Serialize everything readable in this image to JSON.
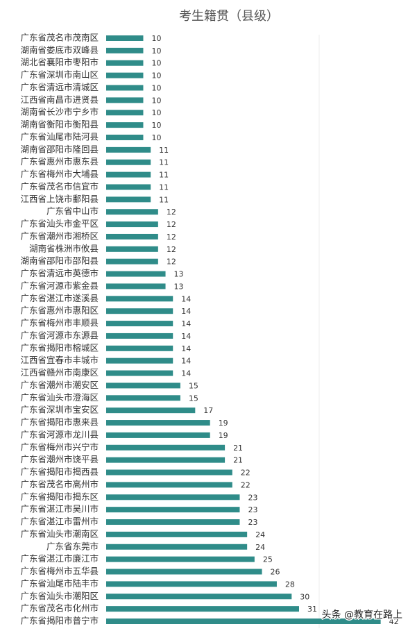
{
  "chart_data": {
    "type": "hbar",
    "title": "考生籍贯（县级）",
    "categories": [
      "广东省茂名市茂南区",
      "湖南省娄底市双峰县",
      "湖北省襄阳市枣阳市",
      "广东省深圳市南山区",
      "广东省清远市清城区",
      "江西省南昌市进贤县",
      "湖南省长沙市宁乡市",
      "湖南省衡阳市衡阳县",
      "广东省汕尾市陆河县",
      "湖南省邵阳市隆回县",
      "广东省惠州市惠东县",
      "广东省梅州市大埔县",
      "广东省茂名市信宜市",
      "江西省上饶市鄱阳县",
      "广东省中山市",
      "广东省汕头市金平区",
      "广东省潮州市湘桥区",
      "湖南省株洲市攸县",
      "湖南省邵阳市邵阳县",
      "广东省清远市英德市",
      "广东省河源市紫金县",
      "广东省湛江市遂溪县",
      "广东省惠州市惠阳区",
      "广东省梅州市丰顺县",
      "广东省河源市东源县",
      "广东省揭阳市榕城区",
      "江西省宜春市丰城市",
      "江西省赣州市南康区",
      "广东省潮州市潮安区",
      "广东省汕头市澄海区",
      "广东省深圳市宝安区",
      "广东省揭阳市惠来县",
      "广东省河源市龙川县",
      "广东省梅州市兴宁市",
      "广东省潮州市饶平县",
      "广东省揭阳市揭西县",
      "广东省茂名市高州市",
      "广东省揭阳市揭东区",
      "广东省湛江市吴川市",
      "广东省湛江市雷州市",
      "广东省汕头市潮南区",
      "广东省东莞市",
      "广东省湛江市廉江市",
      "广东省梅州市五华县",
      "广东省汕尾市陆丰市",
      "广东省汕头市潮阳区",
      "广东省茂名市化州市",
      "广东省揭阳市普宁市"
    ],
    "values": [
      10,
      10,
      10,
      10,
      10,
      10,
      10,
      10,
      10,
      11,
      11,
      11,
      11,
      11,
      12,
      12,
      12,
      12,
      12,
      13,
      13,
      14,
      14,
      14,
      14,
      14,
      14,
      14,
      15,
      15,
      17,
      19,
      19,
      21,
      21,
      22,
      22,
      23,
      23,
      23,
      24,
      24,
      25,
      26,
      28,
      30,
      31,
      42
    ],
    "color": "#2f8c89",
    "xlim": [
      5,
      44
    ],
    "watermark": "头条 @教育在路上"
  }
}
